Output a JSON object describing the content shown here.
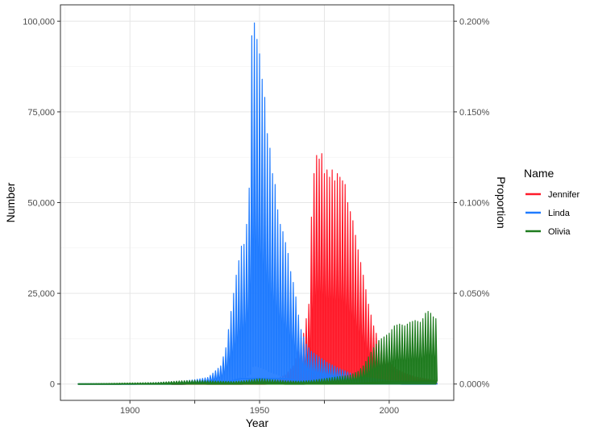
{
  "chart_data": {
    "type": "area",
    "xlabel": "Year",
    "ylabel": "Number",
    "y2label": "Proportion",
    "xlim": [
      1880,
      2018
    ],
    "ylim": [
      0,
      100000
    ],
    "y2lim": [
      0,
      0.002
    ],
    "x_ticks": [
      1900,
      1925,
      1950,
      1975,
      2000
    ],
    "x_tick_labels": [
      "1900",
      "",
      "1950",
      "",
      "2000"
    ],
    "y_ticks": [
      0,
      25000,
      50000,
      75000,
      100000
    ],
    "y_tick_labels": [
      "0",
      "25,000",
      "50,000",
      "75,000",
      "100,000"
    ],
    "y2_ticks": [
      0,
      0.0005,
      0.001,
      0.0015,
      0.002
    ],
    "y2_tick_labels": [
      "0.000%",
      "0.050%",
      "0.100%",
      "0.150%",
      "0.200%"
    ],
    "grid": true,
    "legend": {
      "title": "Name",
      "position": "right"
    },
    "series": [
      {
        "name": "Jennifer",
        "color": "#ff1a2a",
        "points": [
          [
            1916,
            0
          ],
          [
            1925,
            400
          ],
          [
            1935,
            500
          ],
          [
            1940,
            600
          ],
          [
            1945,
            700
          ],
          [
            1950,
            800
          ],
          [
            1955,
            1000
          ],
          [
            1960,
            2500
          ],
          [
            1963,
            5000
          ],
          [
            1965,
            9000
          ],
          [
            1967,
            14000
          ],
          [
            1969,
            22000
          ],
          [
            1970,
            46000
          ],
          [
            1971,
            58000
          ],
          [
            1972,
            63000
          ],
          [
            1973,
            62000
          ],
          [
            1974,
            63500
          ],
          [
            1975,
            58000
          ],
          [
            1976,
            59000
          ],
          [
            1977,
            57000
          ],
          [
            1978,
            59000
          ],
          [
            1979,
            56000
          ],
          [
            1980,
            58000
          ],
          [
            1981,
            57000
          ],
          [
            1983,
            55000
          ],
          [
            1984,
            50000
          ],
          [
            1986,
            45000
          ],
          [
            1988,
            37000
          ],
          [
            1990,
            30000
          ],
          [
            1992,
            22000
          ],
          [
            1994,
            16000
          ],
          [
            1996,
            12000
          ],
          [
            1998,
            9000
          ],
          [
            2000,
            6000
          ],
          [
            2003,
            4000
          ],
          [
            2006,
            3000
          ],
          [
            2010,
            2000
          ],
          [
            2014,
            1500
          ],
          [
            2018,
            1000
          ]
        ]
      },
      {
        "name": "Linda",
        "color": "#1f7bff",
        "points": [
          [
            1880,
            0
          ],
          [
            1900,
            200
          ],
          [
            1910,
            400
          ],
          [
            1920,
            800
          ],
          [
            1925,
            1200
          ],
          [
            1930,
            1800
          ],
          [
            1932,
            3000
          ],
          [
            1935,
            5000
          ],
          [
            1937,
            10000
          ],
          [
            1939,
            20000
          ],
          [
            1941,
            30000
          ],
          [
            1943,
            38000
          ],
          [
            1944,
            38500
          ],
          [
            1945,
            44000
          ],
          [
            1946,
            54000
          ],
          [
            1947,
            96000
          ],
          [
            1948,
            99500
          ],
          [
            1949,
            95000
          ],
          [
            1950,
            91000
          ],
          [
            1951,
            84000
          ],
          [
            1952,
            79000
          ],
          [
            1953,
            69000
          ],
          [
            1954,
            65000
          ],
          [
            1955,
            58000
          ],
          [
            1956,
            55000
          ],
          [
            1957,
            48000
          ],
          [
            1958,
            44000
          ],
          [
            1959,
            42000
          ],
          [
            1960,
            39000
          ],
          [
            1961,
            36000
          ],
          [
            1962,
            31000
          ],
          [
            1963,
            28000
          ],
          [
            1964,
            24000
          ],
          [
            1965,
            19000
          ],
          [
            1966,
            15000
          ],
          [
            1968,
            11000
          ],
          [
            1970,
            9000
          ],
          [
            1973,
            7500
          ],
          [
            1976,
            6000
          ],
          [
            1980,
            4500
          ],
          [
            1985,
            3000
          ],
          [
            1990,
            2000
          ],
          [
            1995,
            1500
          ],
          [
            2000,
            1000
          ],
          [
            2010,
            800
          ],
          [
            2018,
            500
          ]
        ]
      },
      {
        "name": "Olivia",
        "color": "#1e7b1e",
        "points": [
          [
            1880,
            0
          ],
          [
            1900,
            300
          ],
          [
            1910,
            400
          ],
          [
            1920,
            900
          ],
          [
            1925,
            1000
          ],
          [
            1930,
            900
          ],
          [
            1940,
            700
          ],
          [
            1945,
            1000
          ],
          [
            1950,
            1500
          ],
          [
            1955,
            1200
          ],
          [
            1960,
            900
          ],
          [
            1965,
            800
          ],
          [
            1970,
            1000
          ],
          [
            1975,
            1500
          ],
          [
            1980,
            2000
          ],
          [
            1985,
            2500
          ],
          [
            1988,
            3500
          ],
          [
            1990,
            5000
          ],
          [
            1992,
            7500
          ],
          [
            1994,
            10000
          ],
          [
            1996,
            12000
          ],
          [
            1998,
            13000
          ],
          [
            2000,
            14000
          ],
          [
            2002,
            16000
          ],
          [
            2004,
            16500
          ],
          [
            2006,
            16000
          ],
          [
            2008,
            17000
          ],
          [
            2010,
            17500
          ],
          [
            2012,
            17000
          ],
          [
            2013,
            18000
          ],
          [
            2014,
            19500
          ],
          [
            2015,
            20000
          ],
          [
            2016,
            19500
          ],
          [
            2017,
            18500
          ],
          [
            2018,
            18000
          ]
        ]
      }
    ]
  }
}
